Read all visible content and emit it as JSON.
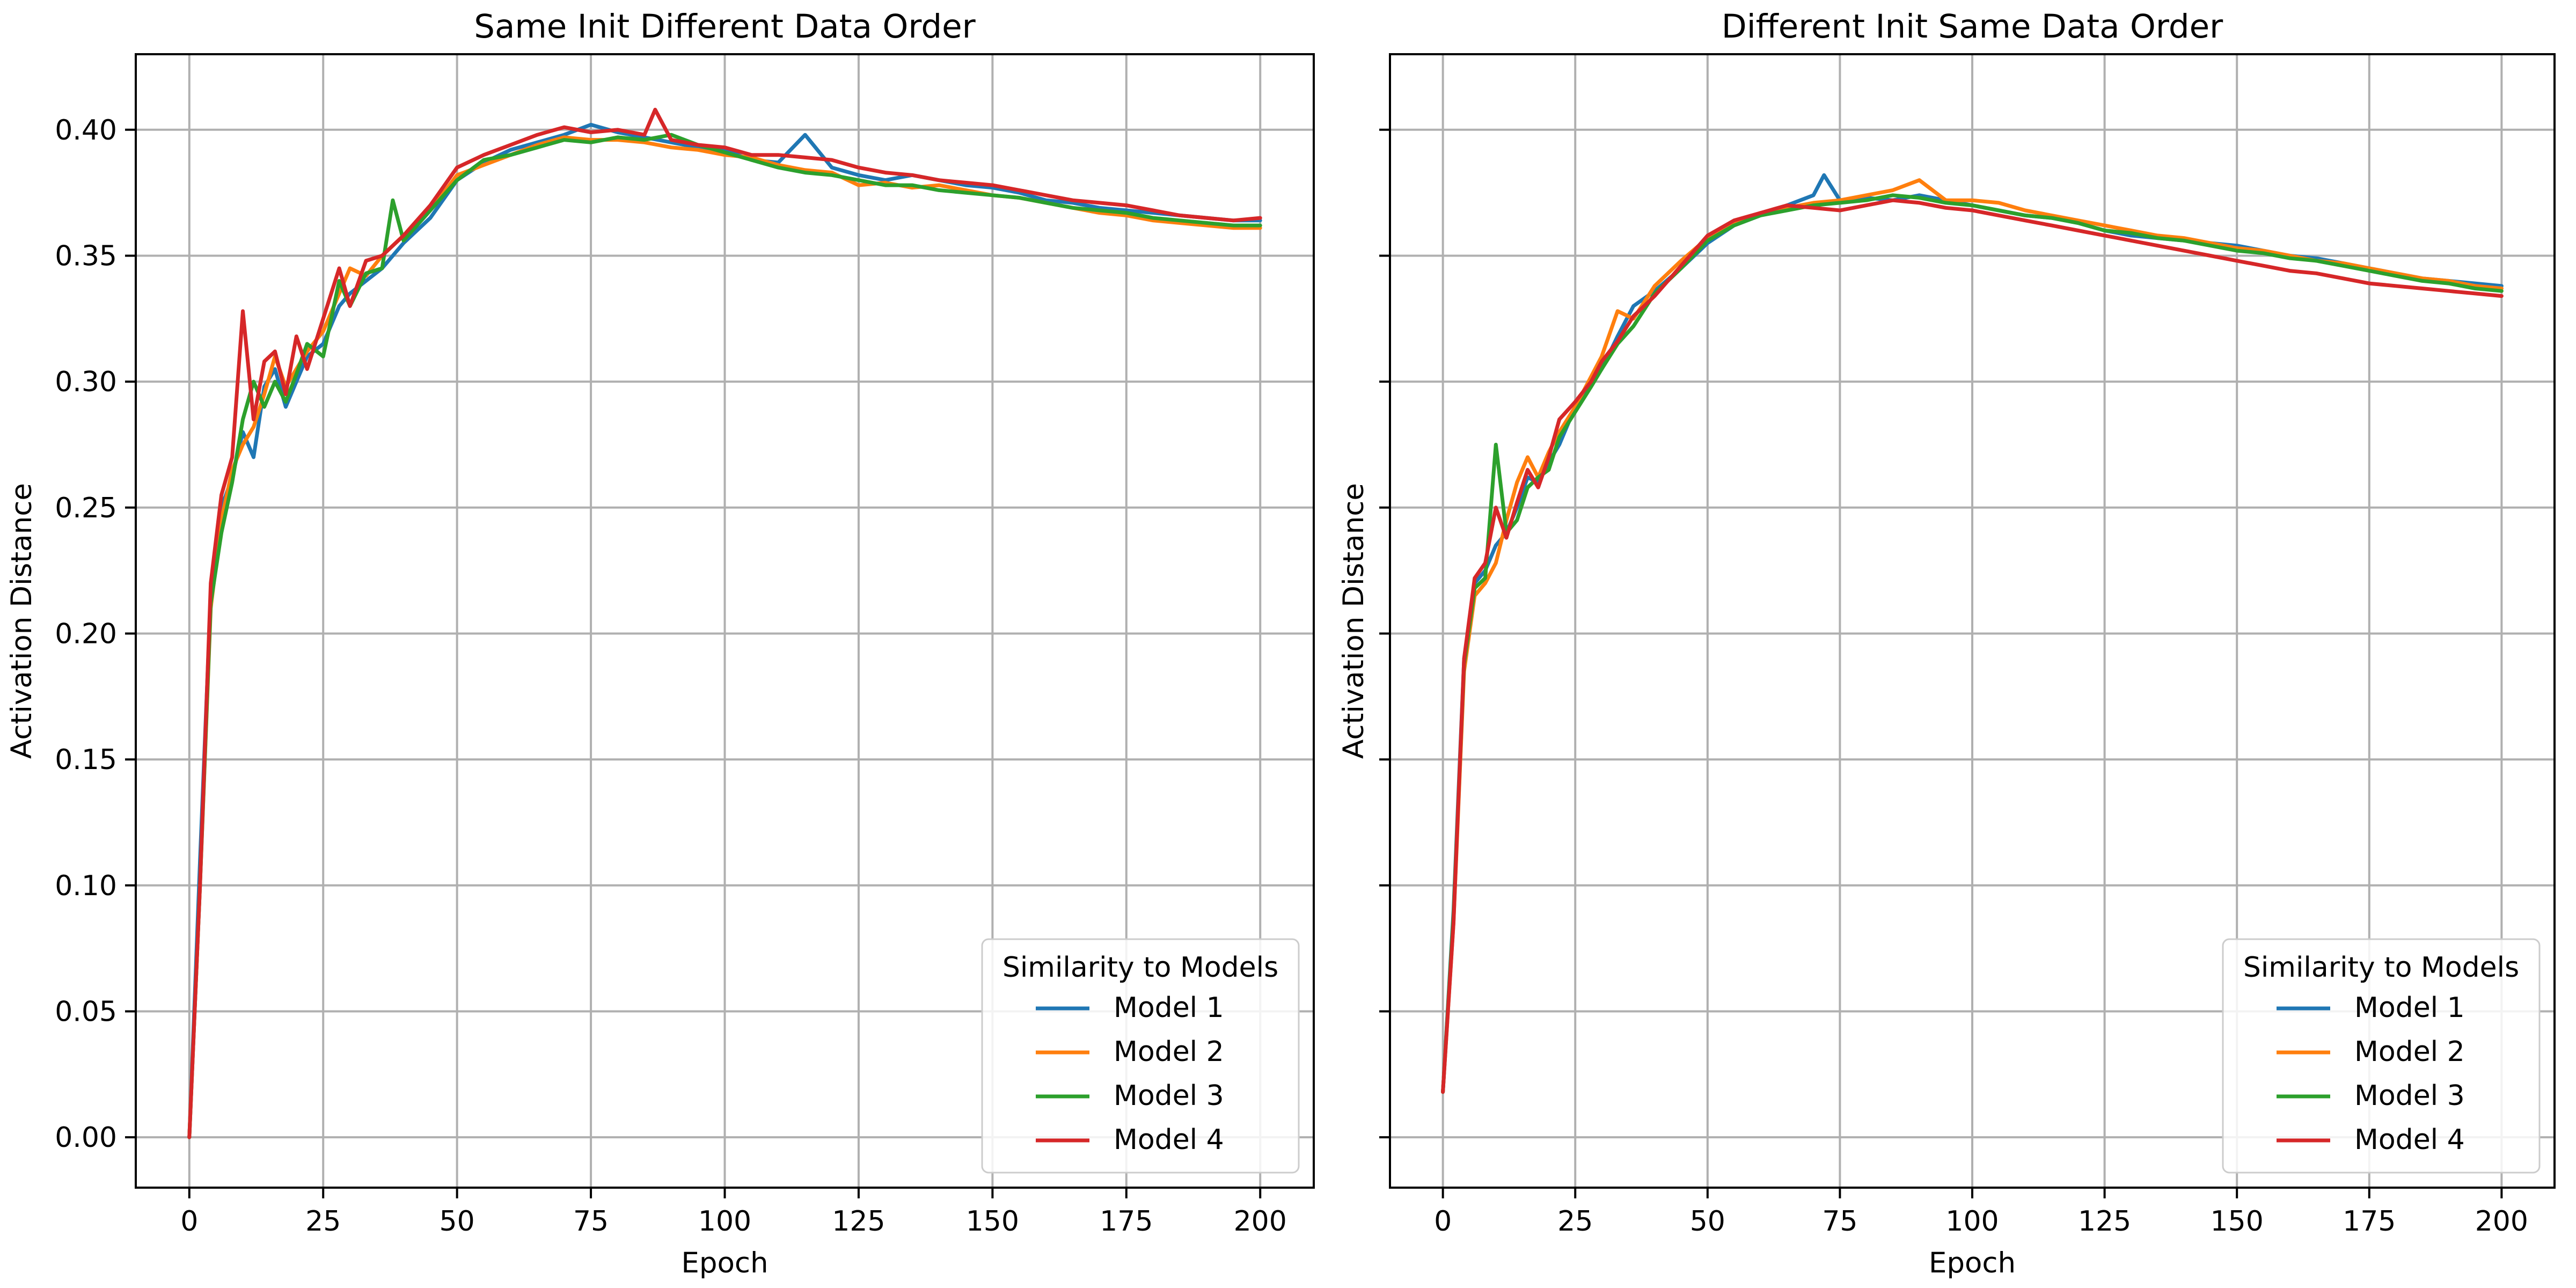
{
  "chart_data": [
    {
      "type": "line",
      "title": "Same Init Different Data Order",
      "xlabel": "Epoch",
      "ylabel": "Activation Distance",
      "xlim": [
        -10,
        210
      ],
      "ylim": [
        -0.02,
        0.43
      ],
      "xticks": [
        0,
        25,
        50,
        75,
        100,
        125,
        150,
        175,
        200
      ],
      "yticks": [
        0.0,
        0.05,
        0.1,
        0.15,
        0.2,
        0.25,
        0.3,
        0.35,
        0.4
      ],
      "ytick_labels": [
        "0.00",
        "0.05",
        "0.10",
        "0.15",
        "0.20",
        "0.25",
        "0.30",
        "0.35",
        "0.40"
      ],
      "show_ytick_labels": true,
      "grid": true,
      "legend": {
        "title": "Similarity to Models",
        "placement": "lower-right"
      },
      "series": [
        {
          "name": "Model 1",
          "color": "#1f77b4",
          "x": [
            0,
            2,
            4,
            6,
            8,
            10,
            12,
            14,
            16,
            18,
            20,
            22,
            25,
            28,
            30,
            33,
            36,
            40,
            45,
            50,
            55,
            60,
            65,
            70,
            75,
            80,
            85,
            90,
            95,
            100,
            105,
            110,
            115,
            120,
            125,
            130,
            135,
            140,
            145,
            150,
            155,
            160,
            165,
            170,
            175,
            180,
            185,
            190,
            195,
            200
          ],
          "y": [
            0.0,
            0.11,
            0.215,
            0.25,
            0.262,
            0.28,
            0.27,
            0.298,
            0.305,
            0.29,
            0.3,
            0.31,
            0.315,
            0.33,
            0.335,
            0.34,
            0.345,
            0.355,
            0.365,
            0.38,
            0.387,
            0.392,
            0.395,
            0.398,
            0.402,
            0.399,
            0.397,
            0.395,
            0.393,
            0.392,
            0.388,
            0.387,
            0.398,
            0.385,
            0.382,
            0.38,
            0.382,
            0.38,
            0.378,
            0.377,
            0.375,
            0.372,
            0.371,
            0.369,
            0.368,
            0.367,
            0.366,
            0.365,
            0.364,
            0.364
          ]
        },
        {
          "name": "Model 2",
          "color": "#ff7f0e",
          "x": [
            0,
            2,
            4,
            6,
            8,
            10,
            12,
            14,
            16,
            18,
            20,
            22,
            25,
            28,
            30,
            33,
            36,
            40,
            45,
            50,
            55,
            60,
            65,
            70,
            75,
            80,
            85,
            90,
            95,
            100,
            105,
            110,
            115,
            120,
            125,
            130,
            135,
            140,
            145,
            150,
            155,
            160,
            165,
            170,
            175,
            180,
            185,
            190,
            195,
            200
          ],
          "y": [
            0.0,
            0.1,
            0.21,
            0.245,
            0.265,
            0.275,
            0.282,
            0.295,
            0.31,
            0.298,
            0.305,
            0.312,
            0.32,
            0.335,
            0.345,
            0.342,
            0.35,
            0.358,
            0.368,
            0.382,
            0.386,
            0.39,
            0.394,
            0.397,
            0.396,
            0.396,
            0.395,
            0.393,
            0.392,
            0.39,
            0.389,
            0.386,
            0.384,
            0.383,
            0.378,
            0.379,
            0.377,
            0.378,
            0.376,
            0.374,
            0.373,
            0.371,
            0.369,
            0.367,
            0.366,
            0.364,
            0.363,
            0.362,
            0.361,
            0.361
          ]
        },
        {
          "name": "Model 3",
          "color": "#2ca02c",
          "x": [
            0,
            2,
            4,
            6,
            8,
            10,
            12,
            14,
            16,
            18,
            20,
            22,
            25,
            28,
            30,
            33,
            36,
            38,
            40,
            45,
            50,
            55,
            60,
            65,
            70,
            75,
            80,
            85,
            90,
            95,
            100,
            105,
            110,
            115,
            120,
            125,
            130,
            135,
            140,
            145,
            150,
            155,
            160,
            165,
            170,
            175,
            180,
            185,
            190,
            195,
            200
          ],
          "y": [
            0.0,
            0.1,
            0.212,
            0.24,
            0.26,
            0.285,
            0.3,
            0.29,
            0.3,
            0.292,
            0.303,
            0.315,
            0.31,
            0.34,
            0.33,
            0.343,
            0.345,
            0.372,
            0.356,
            0.368,
            0.38,
            0.388,
            0.39,
            0.393,
            0.396,
            0.395,
            0.397,
            0.396,
            0.398,
            0.394,
            0.391,
            0.388,
            0.385,
            0.383,
            0.382,
            0.38,
            0.378,
            0.378,
            0.376,
            0.375,
            0.374,
            0.373,
            0.371,
            0.369,
            0.368,
            0.367,
            0.365,
            0.364,
            0.363,
            0.362,
            0.362
          ]
        },
        {
          "name": "Model 4",
          "color": "#d62728",
          "x": [
            0,
            2,
            4,
            6,
            8,
            10,
            12,
            14,
            16,
            18,
            20,
            22,
            25,
            28,
            30,
            33,
            36,
            40,
            45,
            50,
            55,
            60,
            65,
            70,
            75,
            80,
            85,
            87,
            90,
            95,
            100,
            105,
            110,
            115,
            120,
            125,
            130,
            135,
            140,
            145,
            150,
            155,
            160,
            165,
            170,
            175,
            180,
            185,
            190,
            195,
            200
          ],
          "y": [
            0.0,
            0.1,
            0.22,
            0.255,
            0.27,
            0.328,
            0.285,
            0.308,
            0.312,
            0.295,
            0.318,
            0.305,
            0.325,
            0.345,
            0.33,
            0.348,
            0.35,
            0.358,
            0.37,
            0.385,
            0.39,
            0.394,
            0.398,
            0.401,
            0.399,
            0.4,
            0.398,
            0.408,
            0.396,
            0.394,
            0.393,
            0.39,
            0.39,
            0.389,
            0.388,
            0.385,
            0.383,
            0.382,
            0.38,
            0.379,
            0.378,
            0.376,
            0.374,
            0.372,
            0.371,
            0.37,
            0.368,
            0.366,
            0.365,
            0.364,
            0.365
          ]
        }
      ]
    },
    {
      "type": "line",
      "title": "Different Init Same Data Order",
      "xlabel": "Epoch",
      "ylabel": "Activation Distance",
      "xlim": [
        -10,
        210
      ],
      "ylim": [
        -0.02,
        0.43
      ],
      "xticks": [
        0,
        25,
        50,
        75,
        100,
        125,
        150,
        175,
        200
      ],
      "yticks": [
        0.0,
        0.05,
        0.1,
        0.15,
        0.2,
        0.25,
        0.3,
        0.35,
        0.4
      ],
      "ytick_labels": [
        "0.00",
        "0.05",
        "0.10",
        "0.15",
        "0.20",
        "0.25",
        "0.30",
        "0.35",
        "0.40"
      ],
      "show_ytick_labels": false,
      "grid": true,
      "legend": {
        "title": "Similarity to Models",
        "placement": "lower-right"
      },
      "series": [
        {
          "name": "Model 1",
          "color": "#1f77b4",
          "x": [
            0,
            2,
            4,
            6,
            8,
            10,
            12,
            14,
            16,
            18,
            20,
            22,
            25,
            28,
            30,
            33,
            36,
            40,
            45,
            50,
            55,
            60,
            65,
            70,
            72,
            75,
            80,
            85,
            90,
            95,
            100,
            105,
            110,
            115,
            120,
            125,
            130,
            135,
            140,
            145,
            150,
            155,
            160,
            165,
            170,
            175,
            180,
            185,
            190,
            195,
            200
          ],
          "y": [
            0.018,
            0.09,
            0.19,
            0.22,
            0.225,
            0.235,
            0.24,
            0.25,
            0.262,
            0.26,
            0.268,
            0.275,
            0.29,
            0.3,
            0.305,
            0.318,
            0.33,
            0.336,
            0.345,
            0.355,
            0.362,
            0.366,
            0.37,
            0.374,
            0.382,
            0.372,
            0.373,
            0.372,
            0.374,
            0.372,
            0.37,
            0.368,
            0.366,
            0.365,
            0.363,
            0.36,
            0.358,
            0.357,
            0.356,
            0.355,
            0.354,
            0.352,
            0.35,
            0.349,
            0.347,
            0.345,
            0.343,
            0.341,
            0.34,
            0.339,
            0.338
          ]
        },
        {
          "name": "Model 2",
          "color": "#ff7f0e",
          "x": [
            0,
            2,
            4,
            6,
            8,
            10,
            12,
            14,
            16,
            18,
            20,
            22,
            25,
            28,
            30,
            33,
            36,
            40,
            45,
            50,
            55,
            60,
            65,
            70,
            75,
            80,
            85,
            90,
            95,
            100,
            105,
            110,
            115,
            120,
            125,
            130,
            135,
            140,
            145,
            150,
            155,
            160,
            165,
            170,
            175,
            180,
            185,
            190,
            195,
            200
          ],
          "y": [
            0.018,
            0.085,
            0.185,
            0.215,
            0.22,
            0.228,
            0.245,
            0.26,
            0.27,
            0.262,
            0.272,
            0.28,
            0.29,
            0.302,
            0.31,
            0.328,
            0.325,
            0.338,
            0.348,
            0.357,
            0.363,
            0.367,
            0.369,
            0.371,
            0.372,
            0.374,
            0.376,
            0.38,
            0.372,
            0.372,
            0.371,
            0.368,
            0.366,
            0.364,
            0.362,
            0.36,
            0.358,
            0.357,
            0.355,
            0.353,
            0.352,
            0.35,
            0.348,
            0.347,
            0.345,
            0.343,
            0.341,
            0.34,
            0.338,
            0.337
          ]
        },
        {
          "name": "Model 3",
          "color": "#2ca02c",
          "x": [
            0,
            2,
            4,
            6,
            8,
            10,
            12,
            14,
            16,
            18,
            20,
            22,
            25,
            28,
            30,
            33,
            36,
            40,
            45,
            50,
            55,
            60,
            65,
            70,
            75,
            80,
            85,
            90,
            95,
            100,
            105,
            110,
            115,
            120,
            125,
            130,
            135,
            140,
            145,
            150,
            155,
            160,
            165,
            170,
            175,
            180,
            185,
            190,
            195,
            200
          ],
          "y": [
            0.018,
            0.088,
            0.188,
            0.218,
            0.222,
            0.275,
            0.24,
            0.245,
            0.258,
            0.262,
            0.265,
            0.278,
            0.288,
            0.298,
            0.305,
            0.315,
            0.322,
            0.335,
            0.345,
            0.356,
            0.362,
            0.366,
            0.368,
            0.37,
            0.371,
            0.372,
            0.374,
            0.373,
            0.371,
            0.37,
            0.368,
            0.366,
            0.365,
            0.363,
            0.36,
            0.359,
            0.357,
            0.356,
            0.354,
            0.352,
            0.351,
            0.349,
            0.348,
            0.346,
            0.344,
            0.342,
            0.34,
            0.339,
            0.337,
            0.336
          ]
        },
        {
          "name": "Model 4",
          "color": "#d62728",
          "x": [
            0,
            2,
            4,
            6,
            8,
            10,
            12,
            14,
            16,
            18,
            20,
            22,
            25,
            28,
            30,
            33,
            36,
            40,
            45,
            50,
            55,
            60,
            65,
            70,
            75,
            80,
            85,
            90,
            95,
            100,
            105,
            110,
            115,
            120,
            125,
            130,
            135,
            140,
            145,
            150,
            155,
            160,
            165,
            170,
            175,
            180,
            185,
            190,
            195,
            200
          ],
          "y": [
            0.018,
            0.085,
            0.19,
            0.222,
            0.228,
            0.25,
            0.238,
            0.252,
            0.265,
            0.258,
            0.27,
            0.285,
            0.292,
            0.3,
            0.308,
            0.316,
            0.326,
            0.334,
            0.346,
            0.358,
            0.364,
            0.367,
            0.37,
            0.369,
            0.368,
            0.37,
            0.372,
            0.371,
            0.369,
            0.368,
            0.366,
            0.364,
            0.362,
            0.36,
            0.358,
            0.356,
            0.354,
            0.352,
            0.35,
            0.348,
            0.346,
            0.344,
            0.343,
            0.341,
            0.339,
            0.338,
            0.337,
            0.336,
            0.335,
            0.334
          ]
        }
      ]
    }
  ]
}
